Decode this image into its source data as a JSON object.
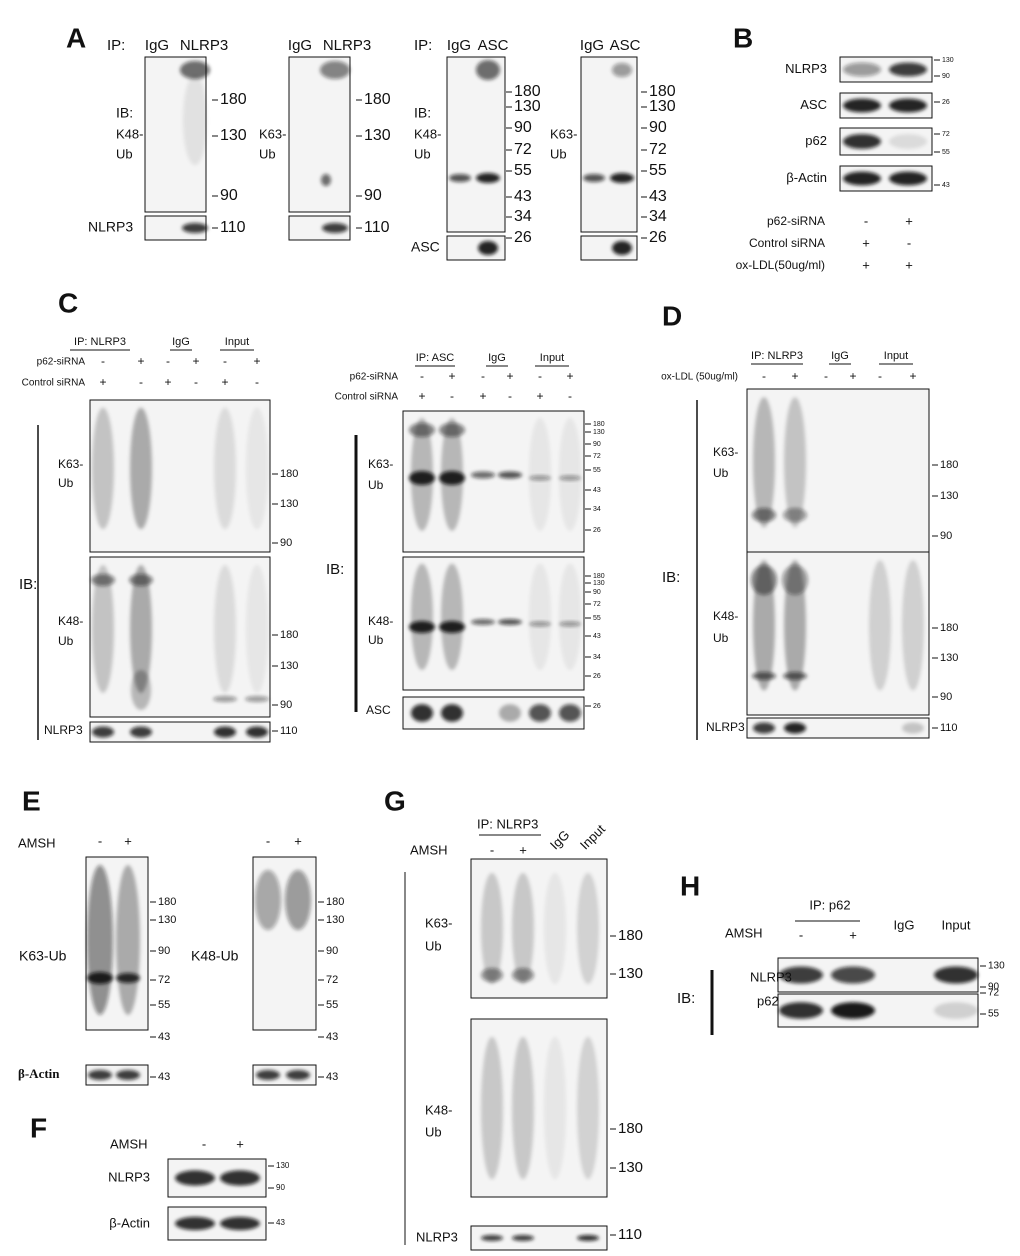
{
  "A": {
    "label": "A",
    "blots": [
      {
        "ip": "IP:",
        "lanes": [
          "IgG",
          "NLRP3"
        ],
        "ib": "IB:",
        "probe": [
          "K48-",
          "Ub"
        ],
        "markers": [
          "180",
          "130",
          "90"
        ],
        "bottom_probe": "NLRP3",
        "bottom_marker": "110"
      },
      {
        "lanes": [
          "IgG",
          "NLRP3"
        ],
        "probe": [
          "K63-",
          "Ub"
        ],
        "markers": [
          "180",
          "130",
          "90"
        ],
        "bottom_marker": "110"
      },
      {
        "ip": "IP:",
        "lanes": [
          "IgG",
          "ASC"
        ],
        "ib": "IB:",
        "probe": [
          "K48-",
          "Ub"
        ],
        "markers": [
          "180",
          "130",
          "90",
          "72",
          "55",
          "43",
          "34"
        ],
        "bottom_probe": "ASC",
        "bottom_marker": "26"
      },
      {
        "lanes": [
          "IgG",
          "ASC"
        ],
        "probe": [
          "K63-",
          "Ub"
        ],
        "markers": [
          "180",
          "130",
          "90",
          "72",
          "55",
          "43",
          "34"
        ],
        "bottom_marker": "26"
      }
    ]
  },
  "B": {
    "label": "B",
    "rows": [
      {
        "probe": "NLRP3",
        "markers": [
          "130",
          "90"
        ]
      },
      {
        "probe": "ASC",
        "markers": [
          "26"
        ]
      },
      {
        "probe": "p62",
        "markers": [
          "72",
          "55"
        ]
      },
      {
        "probe": "β-Actin",
        "markers": [
          "43"
        ]
      }
    ],
    "conditions": [
      {
        "name": "p62-siRNA",
        "signs": [
          "-",
          "+"
        ]
      },
      {
        "name": "Control siRNA",
        "signs": [
          "+",
          "-"
        ]
      },
      {
        "name": "ox-LDL(50ug/ml)",
        "signs": [
          "+",
          "+"
        ]
      }
    ]
  },
  "C": {
    "label": "C",
    "left": {
      "groups": [
        "IP: NLRP3",
        "IgG",
        "Input"
      ],
      "conditions": [
        {
          "name": "p62-siRNA",
          "signs": [
            "-",
            "+",
            "-",
            "+",
            "-",
            "+"
          ]
        },
        {
          "name": "Control siRNA",
          "signs": [
            "+",
            "-",
            "+",
            "-",
            "+",
            "-"
          ]
        }
      ],
      "ib": "IB:",
      "blots": [
        {
          "probe": [
            "K63-",
            "Ub"
          ],
          "markers": [
            "180",
            "130",
            "90"
          ]
        },
        {
          "probe": [
            "K48-",
            "Ub"
          ],
          "markers": [
            "180",
            "130",
            "90"
          ]
        },
        {
          "probe": [
            "NLRP3"
          ],
          "markers": [
            "110"
          ]
        }
      ]
    },
    "right": {
      "groups": [
        "IP: ASC",
        "IgG",
        "Input"
      ],
      "conditions": [
        {
          "name": "p62-siRNA",
          "signs": [
            "-",
            "+",
            "-",
            "+",
            "-",
            "+"
          ]
        },
        {
          "name": "Control siRNA",
          "signs": [
            "+",
            "-",
            "+",
            "-",
            "+",
            "-"
          ]
        }
      ],
      "ib": "IB:",
      "blots": [
        {
          "probe": [
            "K63-",
            "Ub"
          ],
          "markers": [
            "180",
            "130",
            "90",
            "72",
            "55",
            "43",
            "34",
            "26"
          ]
        },
        {
          "probe": [
            "K48-",
            "Ub"
          ],
          "markers": [
            "180",
            "130",
            "90",
            "72",
            "55",
            "43",
            "34",
            "26"
          ]
        },
        {
          "probe": [
            "ASC"
          ],
          "markers": [
            "26"
          ]
        }
      ]
    }
  },
  "D": {
    "label": "D",
    "groups": [
      "IP: NLRP3",
      "IgG",
      "Input"
    ],
    "conditions": [
      {
        "name": "ox-LDL (50ug/ml)",
        "signs": [
          "-",
          "+",
          "-",
          "+",
          "-",
          "+"
        ]
      }
    ],
    "ib": "IB:",
    "blots": [
      {
        "probe": [
          "K63-",
          "Ub"
        ],
        "markers": [
          "180",
          "130",
          "90"
        ]
      },
      {
        "probe": [
          "K48-",
          "Ub"
        ],
        "markers": [
          "180",
          "130",
          "90"
        ]
      },
      {
        "probe": [
          "NLRP3"
        ],
        "markers": [
          "110"
        ]
      }
    ]
  },
  "E": {
    "label": "E",
    "treatment": "AMSH",
    "blots": [
      {
        "signs": [
          "-",
          "+"
        ],
        "probe": "K63-Ub",
        "markers": [
          "180",
          "130",
          "90",
          "72",
          "55",
          "43"
        ],
        "loading": "β-Actin",
        "loading_marker": "43"
      },
      {
        "signs": [
          "-",
          "+"
        ],
        "probe": "K48-Ub",
        "markers": [
          "180",
          "130",
          "90",
          "72",
          "55",
          "43"
        ],
        "loading_marker": "43"
      }
    ]
  },
  "F": {
    "label": "F",
    "treatment": "AMSH",
    "signs": [
      "-",
      "+"
    ],
    "rows": [
      {
        "probe": "NLRP3",
        "markers": [
          "130",
          "90"
        ]
      },
      {
        "probe": "β-Actin",
        "markers": [
          "43"
        ]
      }
    ]
  },
  "G": {
    "label": "G",
    "ip": "IP: NLRP3",
    "treatment": "AMSH",
    "signs": [
      "-",
      "+"
    ],
    "lanes": [
      "IgG",
      "Input"
    ],
    "blots": [
      {
        "probe": [
          "K63-",
          "Ub"
        ],
        "markers": [
          "180",
          "130"
        ]
      },
      {
        "probe": [
          "K48-",
          "Ub"
        ],
        "markers": [
          "180",
          "130"
        ]
      },
      {
        "probe": [
          "NLRP3"
        ],
        "markers": [
          "110"
        ]
      }
    ]
  },
  "H": {
    "label": "H",
    "ip": "IP: p62",
    "treatment": "AMSH",
    "signs": [
      "-",
      "+"
    ],
    "lanes": [
      "IgG",
      "Input"
    ],
    "ib": "IB:",
    "rows": [
      {
        "probe": "NLRP3",
        "markers": [
          "130",
          "90"
        ]
      },
      {
        "probe": "p62",
        "markers": [
          "72",
          "55"
        ]
      }
    ]
  }
}
